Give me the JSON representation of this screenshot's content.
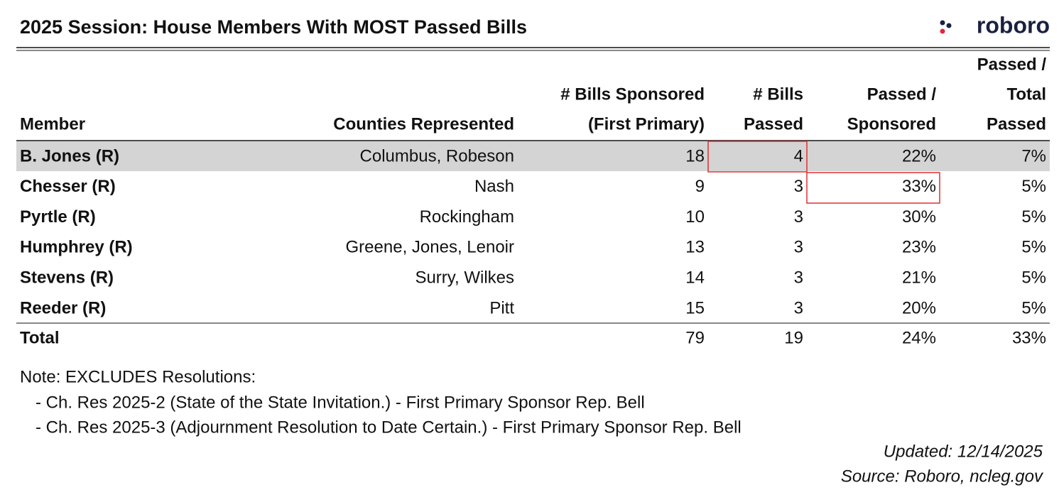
{
  "header": {
    "title": "2025 Session: House Members With MOST Passed Bills",
    "logo": "roboro"
  },
  "table": {
    "columns": [
      [
        "Member"
      ],
      [
        "Counties Represented"
      ],
      [
        "# Bills Sponsored",
        "(First Primary)"
      ],
      [
        "# Bills",
        "Passed"
      ],
      [
        "Passed /",
        "Sponsored"
      ],
      [
        "Passed /",
        "Total",
        "Passed"
      ]
    ],
    "rows": [
      [
        "B. Jones (R)",
        "Columbus, Robeson",
        "18",
        "4",
        "22%",
        "7%"
      ],
      [
        "Chesser (R)",
        "Nash",
        "9",
        "3",
        "33%",
        "5%"
      ],
      [
        "Pyrtle (R)",
        "Rockingham",
        "10",
        "3",
        "30%",
        "5%"
      ],
      [
        "Humphrey (R)",
        "Greene, Jones, Lenoir",
        "13",
        "3",
        "23%",
        "5%"
      ],
      [
        "Stevens (R)",
        "Surry, Wilkes",
        "14",
        "3",
        "21%",
        "5%"
      ],
      [
        "Reeder (R)",
        "Pitt",
        "15",
        "3",
        "20%",
        "5%"
      ]
    ],
    "total": [
      "Total",
      "",
      "79",
      "19",
      "24%",
      "33%"
    ]
  },
  "notes": {
    "heading": "Note: EXCLUDES Resolutions:",
    "items": [
      "- Ch. Res 2025-2 (State of the State Invitation.) - First Primary Sponsor Rep. Bell",
      "- Ch. Res 2025-3 (Adjournment Resolution to Date Certain.) - First Primary Sponsor Rep. Bell"
    ]
  },
  "footer": {
    "updated": "Updated: 12/14/2025",
    "source": "Source: Roboro, ncleg.gov"
  }
}
